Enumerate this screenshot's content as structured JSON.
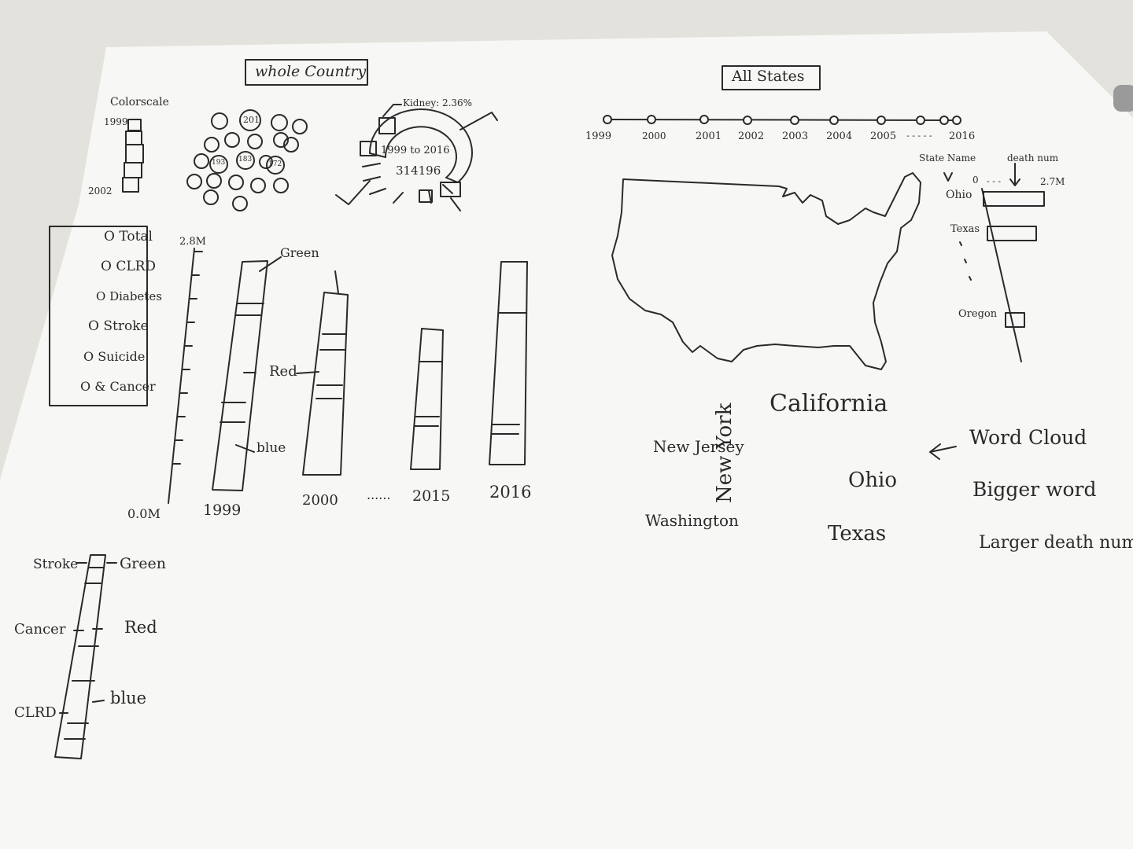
{
  "colors": {
    "paper": "#f7f7f5",
    "ink": "#2a2a2a",
    "desk": "#e4e2dc"
  },
  "whole_country": {
    "title": "whole Country",
    "colorscale": {
      "label": "Colorscale",
      "top": "1999",
      "bottom": "2002"
    },
    "bubble_labels": [
      "201",
      "193",
      "183",
      "172"
    ],
    "donut": {
      "label": "Kidney: 2.36%",
      "center_line1": "1999 to 2016",
      "center_line2": "314196"
    },
    "legend": {
      "items": [
        "O Total",
        "O CLRD",
        "O Diabetes",
        "O Stroke",
        "O Suicide",
        "O & Cancer"
      ]
    },
    "bar_chart": {
      "y_top": "2.8M",
      "y_bottom": "0.0M",
      "x_labels": [
        "1999",
        "2000",
        "......",
        "2015",
        "2016"
      ],
      "annotations": {
        "green": "Green",
        "red": "Red",
        "blue": "blue"
      }
    },
    "stack_legend": {
      "left": [
        "Stroke",
        "Cancer",
        "CLRD"
      ],
      "right": [
        "Green",
        "Red",
        "blue"
      ]
    }
  },
  "all_states": {
    "title": "All States",
    "timeline": [
      "1999",
      "2000",
      "2001",
      "2002",
      "2003",
      "2004",
      "2005",
      "- - - - -",
      "2016"
    ],
    "side_bar": {
      "header_left": "State Name",
      "header_right": "death num",
      "axis_zero": "0",
      "axis_dots": "- - -",
      "axis_max": "2.7M",
      "states": [
        "Ohio",
        "Texas",
        "Oregon"
      ]
    },
    "word_cloud": {
      "words": [
        "California",
        "New Jersey",
        "Ohio",
        "Washington",
        "Texas",
        "New York"
      ],
      "note_arrow": "←",
      "notes": [
        "Word Cloud",
        "Bigger word",
        "Larger death num"
      ]
    }
  }
}
